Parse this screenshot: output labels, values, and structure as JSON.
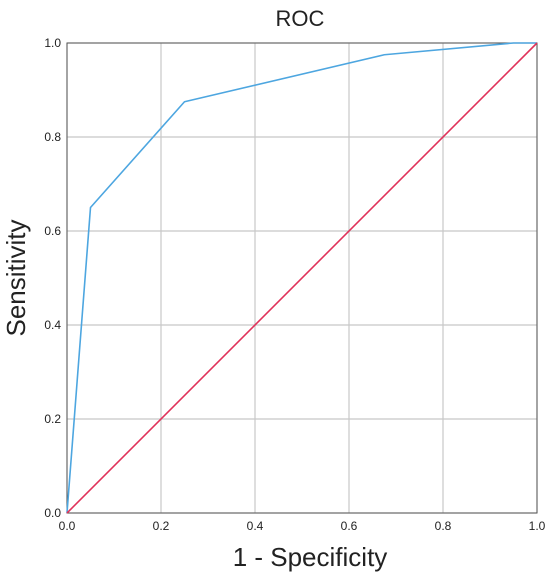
{
  "chart_data": {
    "type": "line",
    "title": "ROC",
    "xlabel": "1 - Specificity",
    "ylabel": "Sensitivity",
    "xlim": [
      0.0,
      1.0
    ],
    "ylim": [
      0.0,
      1.0
    ],
    "grid": true,
    "x_ticks": [
      "0.0",
      "0.2",
      "0.4",
      "0.6",
      "0.8",
      "1.0"
    ],
    "y_ticks": [
      "0.0",
      "0.2",
      "0.4",
      "0.6",
      "0.8",
      "1.0"
    ],
    "series": [
      {
        "color": "#4da6e0",
        "x": [
          0.0,
          0.05,
          0.25,
          0.675,
          0.95,
          1.0
        ],
        "y": [
          0.0,
          0.65,
          0.875,
          0.975,
          1.0,
          1.0
        ]
      },
      {
        "color": "#e0325a",
        "x": [
          0.0,
          1.0
        ],
        "y": [
          0.0,
          1.0
        ]
      }
    ]
  }
}
